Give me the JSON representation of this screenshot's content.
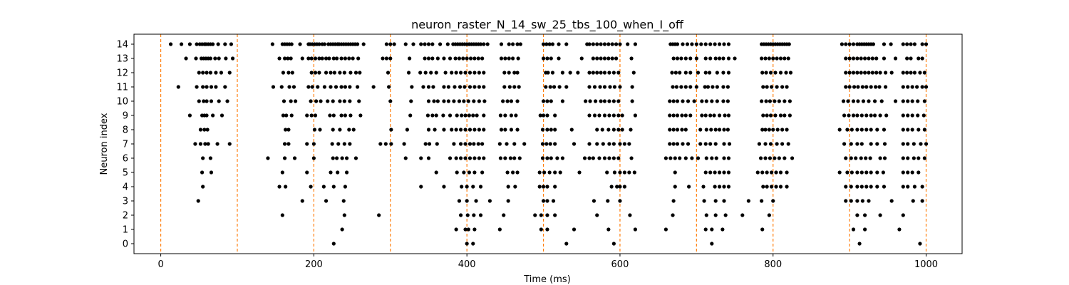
{
  "chart_data": {
    "type": "scatter",
    "title": "neuron_raster_N_14_sw_25_tbs_100_when_I_off",
    "xlabel": "Time (ms)",
    "ylabel": "Neuron index",
    "xlim": [
      -35,
      1047
    ],
    "ylim": [
      -0.7,
      14.7
    ],
    "xticks": [
      0,
      200,
      400,
      600,
      800,
      1000
    ],
    "yticks": [
      0,
      1,
      2,
      3,
      4,
      5,
      6,
      7,
      8,
      9,
      10,
      11,
      12,
      13,
      14
    ],
    "grid": false,
    "legend": "none",
    "marker_color": "#000000",
    "marker": "dot",
    "stimulus_line_color": "#ff7f0e",
    "stimulus_times_ms": [
      0,
      100,
      200,
      300,
      400,
      500,
      600,
      700,
      800,
      900,
      1000
    ],
    "spikes": [
      {
        "neuron": 14,
        "times": [
          13,
          27,
          38,
          47,
          51,
          54,
          57,
          59,
          62,
          65,
          68,
          75,
          84,
          92,
          146,
          159,
          162,
          165,
          168,
          171,
          182,
          193,
          195,
          198,
          201,
          204,
          207,
          211,
          214,
          219,
          222,
          225,
          228,
          231,
          233,
          236,
          239,
          242,
          245,
          248,
          251,
          254,
          257,
          265,
          295,
          300,
          305,
          320,
          330,
          340,
          345,
          350,
          355,
          365,
          375,
          382,
          385,
          388,
          391,
          394,
          397,
          400,
          403,
          406,
          409,
          412,
          415,
          418,
          422,
          427,
          445,
          455,
          460,
          466,
          470,
          500,
          504,
          508,
          512,
          520,
          530,
          557,
          560,
          565,
          570,
          575,
          580,
          585,
          590,
          595,
          600,
          610,
          620,
          666,
          669,
          672,
          675,
          682,
          688,
          694,
          700,
          706,
          712,
          718,
          724,
          730,
          736,
          742,
          785,
          788,
          791,
          794,
          797,
          800,
          803,
          806,
          809,
          812,
          815,
          818,
          821,
          890,
          895,
          900,
          905,
          910,
          913,
          916,
          919,
          922,
          925,
          928,
          931,
          945,
          954,
          970,
          975,
          980,
          985,
          995,
          1000
        ]
      },
      {
        "neuron": 13,
        "times": [
          33,
          46,
          53,
          56,
          59,
          62,
          65,
          71,
          76,
          85,
          94,
          155,
          162,
          166,
          170,
          185,
          193,
          197,
          202,
          207,
          211,
          216,
          220,
          226,
          230,
          236,
          241,
          246,
          251,
          258,
          290,
          295,
          300,
          325,
          345,
          350,
          355,
          362,
          370,
          378,
          385,
          390,
          395,
          400,
          405,
          410,
          415,
          420,
          445,
          450,
          455,
          460,
          467,
          500,
          505,
          510,
          520,
          550,
          565,
          570,
          575,
          580,
          585,
          590,
          595,
          615,
          670,
          675,
          680,
          686,
          692,
          700,
          712,
          718,
          725,
          730,
          735,
          742,
          750,
          785,
          790,
          795,
          800,
          805,
          810,
          815,
          820,
          895,
          900,
          905,
          910,
          915,
          920,
          925,
          930,
          935,
          945,
          960,
          975,
          980,
          990,
          995
        ]
      },
      {
        "neuron": 12,
        "times": [
          50,
          55,
          60,
          65,
          72,
          79,
          90,
          160,
          167,
          172,
          197,
          202,
          207,
          216,
          222,
          227,
          234,
          240,
          248,
          255,
          260,
          297,
          324,
          339,
          346,
          353,
          360,
          372,
          380,
          386,
          392,
          398,
          404,
          410,
          416,
          422,
          449,
          455,
          462,
          466,
          503,
          506,
          512,
          525,
          535,
          545,
          560,
          565,
          570,
          575,
          580,
          586,
          592,
          598,
          618,
          668,
          673,
          678,
          686,
          692,
          702,
          712,
          717,
          727,
          735,
          742,
          786,
          791,
          797,
          803,
          810,
          817,
          823,
          895,
          900,
          905,
          910,
          915,
          920,
          925,
          930,
          935,
          940,
          947,
          955,
          970,
          975,
          980,
          985,
          992,
          998
        ]
      },
      {
        "neuron": 11,
        "times": [
          23,
          47,
          55,
          60,
          66,
          72,
          84,
          147,
          158,
          168,
          174,
          193,
          198,
          205,
          214,
          222,
          229,
          236,
          241,
          247,
          257,
          278,
          298,
          328,
          343,
          350,
          356,
          370,
          376,
          384,
          391,
          397,
          404,
          410,
          416,
          422,
          449,
          456,
          462,
          468,
          503,
          509,
          514,
          521,
          530,
          560,
          567,
          574,
          580,
          587,
          593,
          600,
          616,
          669,
          674,
          680,
          686,
          692,
          700,
          711,
          715,
          721,
          727,
          735,
          741,
          787,
          792,
          798,
          805,
          812,
          818,
          895,
          900,
          906,
          911,
          917,
          922,
          928,
          934,
          939,
          947,
          970,
          976,
          982,
          988,
          995,
          1000
        ]
      },
      {
        "neuron": 10,
        "times": [
          50,
          56,
          60,
          66,
          76,
          87,
          161,
          170,
          176,
          196,
          203,
          209,
          218,
          225,
          234,
          240,
          247,
          259,
          300,
          327,
          350,
          357,
          362,
          370,
          376,
          383,
          390,
          396,
          402,
          409,
          416,
          423,
          447,
          453,
          458,
          466,
          500,
          505,
          510,
          525,
          555,
          561,
          568,
          575,
          580,
          586,
          592,
          598,
          616,
          665,
          670,
          675,
          682,
          689,
          697,
          707,
          713,
          720,
          727,
          735,
          741,
          785,
          791,
          796,
          802,
          808,
          815,
          822,
          892,
          898,
          905,
          911,
          918,
          925,
          933,
          942,
          960,
          970,
          976,
          982,
          989,
          998
        ]
      },
      {
        "neuron": 9,
        "times": [
          38,
          54,
          57,
          60,
          68,
          80,
          160,
          164,
          171,
          191,
          197,
          202,
          221,
          226,
          236,
          241,
          248,
          261,
          326,
          349,
          355,
          360,
          369,
          378,
          387,
          393,
          398,
          403,
          408,
          413,
          422,
          444,
          450,
          458,
          464,
          496,
          500,
          505,
          515,
          560,
          567,
          573,
          580,
          586,
          592,
          598,
          603,
          620,
          665,
          670,
          675,
          681,
          686,
          692,
          707,
          712,
          718,
          723,
          730,
          737,
          742,
          787,
          792,
          797,
          803,
          810,
          815,
          822,
          893,
          899,
          905,
          910,
          916,
          922,
          928,
          933,
          940,
          948,
          970,
          976,
          982,
          989,
          997
        ]
      },
      {
        "neuron": 8,
        "times": [
          52,
          57,
          61,
          163,
          167,
          201,
          208,
          225,
          234,
          246,
          252,
          301,
          322,
          350,
          358,
          370,
          380,
          386,
          392,
          398,
          404,
          410,
          416,
          422,
          445,
          450,
          458,
          466,
          499,
          505,
          510,
          515,
          537,
          570,
          577,
          585,
          592,
          598,
          603,
          614,
          665,
          670,
          675,
          681,
          686,
          705,
          713,
          719,
          725,
          730,
          736,
          741,
          786,
          790,
          795,
          800,
          806,
          812,
          818,
          887,
          897,
          903,
          910,
          916,
          922,
          928,
          936,
          945,
          970,
          976,
          982,
          990,
          998
        ]
      },
      {
        "neuron": 7,
        "times": [
          45,
          52,
          58,
          62,
          74,
          90,
          162,
          167,
          191,
          200,
          224,
          232,
          240,
          247,
          287,
          294,
          301,
          318,
          346,
          351,
          361,
          383,
          392,
          398,
          404,
          409,
          415,
          420,
          443,
          452,
          462,
          475,
          499,
          504,
          509,
          515,
          540,
          560,
          570,
          578,
          586,
          592,
          600,
          606,
          612,
          665,
          670,
          675,
          682,
          689,
          705,
          712,
          718,
          725,
          736,
          743,
          782,
          790,
          797,
          805,
          812,
          820,
          893,
          902,
          910,
          916,
          928,
          936,
          946,
          970,
          976,
          984,
          993,
          1000
        ]
      },
      {
        "neuron": 6,
        "times": [
          55,
          65,
          140,
          162,
          175,
          200,
          225,
          230,
          237,
          243,
          255,
          320,
          340,
          350,
          378,
          386,
          392,
          398,
          404,
          410,
          416,
          422,
          444,
          450,
          457,
          462,
          469,
          499,
          505,
          510,
          518,
          525,
          554,
          560,
          565,
          573,
          580,
          586,
          592,
          598,
          615,
          660,
          666,
          672,
          678,
          686,
          694,
          702,
          713,
          720,
          726,
          736,
          742,
          784,
          790,
          796,
          802,
          808,
          815,
          825,
          895,
          902,
          908,
          915,
          921,
          927,
          940,
          946,
          970,
          976,
          984,
          990,
          998
        ]
      },
      {
        "neuron": 5,
        "times": [
          54,
          66,
          159,
          191,
          222,
          231,
          243,
          360,
          387,
          396,
          403,
          410,
          420,
          453,
          460,
          466,
          495,
          501,
          508,
          515,
          522,
          547,
          583,
          593,
          600,
          606,
          612,
          619,
          672,
          712,
          718,
          724,
          730,
          736,
          742,
          780,
          786,
          792,
          798,
          804,
          810,
          818,
          887,
          897,
          903,
          910,
          916,
          922,
          928,
          936,
          944,
          970,
          976,
          982,
          990
        ]
      },
      {
        "neuron": 4,
        "times": [
          55,
          155,
          163,
          196,
          213,
          226,
          241,
          340,
          370,
          393,
          400,
          408,
          418,
          454,
          463,
          495,
          500,
          505,
          515,
          589,
          596,
          600,
          606,
          672,
          690,
          709,
          724,
          730,
          736,
          742,
          787,
          792,
          798,
          804,
          810,
          818,
          895,
          902,
          910,
          916,
          922,
          928,
          936,
          945,
          970,
          976,
          985,
          995
        ]
      },
      {
        "neuron": 3,
        "times": [
          49,
          185,
          216,
          239,
          390,
          400,
          412,
          430,
          454,
          500,
          505,
          513,
          566,
          584,
          600,
          670,
          710,
          725,
          736,
          768,
          785,
          800,
          895,
          902,
          910,
          917,
          925,
          955,
          983,
          995
        ]
      },
      {
        "neuron": 2,
        "times": [
          159,
          240,
          285,
          392,
          401,
          409,
          418,
          448,
          489,
          497,
          505,
          515,
          570,
          613,
          669,
          713,
          725,
          738,
          760,
          795,
          910,
          920,
          940,
          970
        ]
      },
      {
        "neuron": 1,
        "times": [
          237,
          386,
          398,
          402,
          410,
          443,
          497,
          505,
          540,
          585,
          620,
          660,
          712,
          720,
          734,
          786,
          905,
          920,
          965
        ]
      },
      {
        "neuron": 0,
        "times": [
          226,
          400,
          408,
          530,
          592,
          720,
          913,
          992
        ]
      }
    ]
  }
}
